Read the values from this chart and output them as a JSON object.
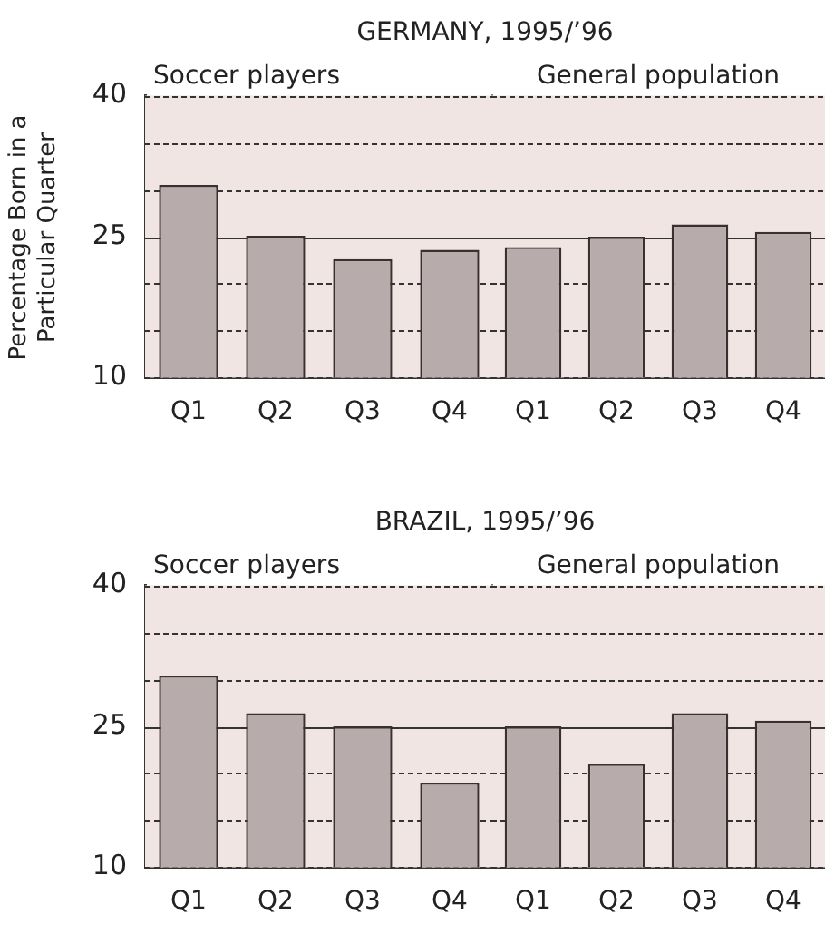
{
  "chart_data": [
    {
      "type": "bar",
      "title": "GERMANY, 1995/’96",
      "subtitle": "Soccer players",
      "ylabel": "Percentage Born in a Particular Quarter",
      "categories": [
        "Q1",
        "Q2",
        "Q3",
        "Q4"
      ],
      "values": [
        30.5,
        25.1,
        22.6,
        23.6
      ],
      "color": "#b8abab",
      "ref_lines": [
        {
          "axis": "y",
          "value": 25
        }
      ],
      "ylim": [
        10,
        40
      ],
      "yticks": [
        10,
        {
          "value": 15,
          "label": null
        },
        {
          "value": 20,
          "label": null
        },
        25,
        {
          "value": 30,
          "label": null
        },
        {
          "value": 35,
          "label": null
        },
        40
      ],
      "grid": "y"
    },
    {
      "type": "bar",
      "subtitle": "General population",
      "categories": [
        "Q1",
        "Q2",
        "Q3",
        "Q4"
      ],
      "values": [
        23.9,
        25.0,
        26.3,
        25.5
      ],
      "color": "#b8abab",
      "ref_lines": [
        {
          "axis": "y",
          "value": 25
        }
      ],
      "ylim": [
        10,
        40
      ],
      "yticks": [
        10,
        {
          "value": 15,
          "label": null
        },
        {
          "value": 20,
          "label": null
        },
        25,
        {
          "value": 30,
          "label": null
        },
        {
          "value": 35,
          "label": null
        },
        40
      ],
      "grid": "y",
      "tick_labels": "x"
    },
    {
      "type": "bar",
      "title": "BRAZIL, 1995/’96",
      "subtitle": "Soccer players",
      "categories": [
        "Q1",
        "Q2",
        "Q3",
        "Q4"
      ],
      "values": [
        30.4,
        26.4,
        25.0,
        19.0
      ],
      "color": "#b8abab",
      "ref_lines": [
        {
          "axis": "y",
          "value": 25
        }
      ],
      "ylim": [
        10,
        40
      ],
      "yticks": [
        10,
        {
          "value": 15,
          "label": null
        },
        {
          "value": 20,
          "label": null
        },
        25,
        {
          "value": 30,
          "label": null
        },
        {
          "value": 35,
          "label": null
        },
        40
      ],
      "grid": "y"
    },
    {
      "type": "bar",
      "subtitle": "General population",
      "categories": [
        "Q1",
        "Q2",
        "Q3",
        "Q4"
      ],
      "values": [
        25.0,
        21.0,
        26.4,
        25.6
      ],
      "color": "#b8abab",
      "ref_lines": [
        {
          "axis": "y",
          "value": 25
        }
      ],
      "ylim": [
        10,
        40
      ],
      "yticks": [
        10,
        {
          "value": 15,
          "label": null
        },
        {
          "value": 20,
          "label": null
        },
        25,
        {
          "value": 30,
          "label": null
        },
        {
          "value": 35,
          "label": null
        },
        40
      ],
      "grid": "y",
      "tick_labels": "x"
    }
  ]
}
